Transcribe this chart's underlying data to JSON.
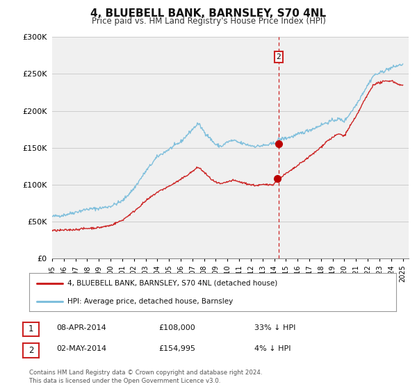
{
  "title": "4, BLUEBELL BANK, BARNSLEY, S70 4NL",
  "subtitle": "Price paid vs. HM Land Registry's House Price Index (HPI)",
  "ylim": [
    0,
    300000
  ],
  "yticks": [
    0,
    50000,
    100000,
    150000,
    200000,
    250000,
    300000
  ],
  "ytick_labels": [
    "£0",
    "£50K",
    "£100K",
    "£150K",
    "£200K",
    "£250K",
    "£300K"
  ],
  "xlim_start": 1995.0,
  "xlim_end": 2025.5,
  "xticks": [
    1995,
    1996,
    1997,
    1998,
    1999,
    2000,
    2001,
    2002,
    2003,
    2004,
    2005,
    2006,
    2007,
    2008,
    2009,
    2010,
    2011,
    2012,
    2013,
    2014,
    2015,
    2016,
    2017,
    2018,
    2019,
    2020,
    2021,
    2022,
    2023,
    2024,
    2025
  ],
  "hpi_color": "#7fbfdc",
  "price_color": "#cc2222",
  "dot_color": "#bb0000",
  "vline_color": "#cc2222",
  "legend_label_price": "4, BLUEBELL BANK, BARNSLEY, S70 4NL (detached house)",
  "legend_label_hpi": "HPI: Average price, detached house, Barnsley",
  "annotation1_date": "08-APR-2014",
  "annotation1_price": "£108,000",
  "annotation1_pct": "33% ↓ HPI",
  "annotation2_date": "02-MAY-2014",
  "annotation2_price": "£154,995",
  "annotation2_pct": "4% ↓ HPI",
  "footnote_line1": "Contains HM Land Registry data © Crown copyright and database right 2024.",
  "footnote_line2": "This data is licensed under the Open Government Licence v3.0.",
  "vline_x": 2014.37,
  "sale1_x": 2014.27,
  "sale1_y": 108000,
  "sale2_x": 2014.37,
  "sale2_y": 154995,
  "bg_color": "#ffffff",
  "grid_color": "#cccccc",
  "plot_bg_color": "#f0f0f0"
}
